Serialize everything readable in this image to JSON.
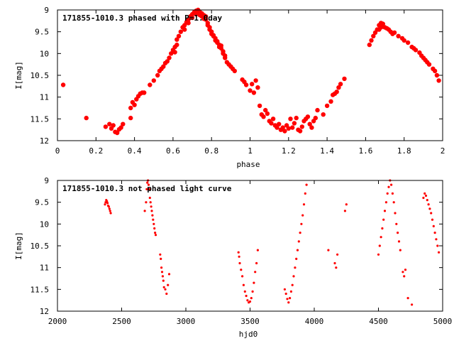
{
  "chart_data": [
    {
      "type": "scatter",
      "title": "171855-1010.3 phased with P=1.0day",
      "xlabel": "phase",
      "ylabel": "I[mag]",
      "xlim": [
        0,
        2
      ],
      "ylim": [
        9,
        12
      ],
      "y_inverted": true,
      "xticks": [
        "0",
        "0.2",
        "0.4",
        "0.6",
        "0.8",
        "1",
        "1.2",
        "1.4",
        "1.6",
        "1.8",
        "2"
      ],
      "yticks": [
        "9",
        "9.5",
        "10",
        "10.5",
        "11",
        "11.5",
        "12"
      ],
      "color": "#ff0000",
      "marker_size": "large",
      "x": [
        0.03,
        0.15,
        0.25,
        0.27,
        0.28,
        0.29,
        0.3,
        0.31,
        0.32,
        0.33,
        0.34,
        0.38,
        0.38,
        0.39,
        0.4,
        0.41,
        0.42,
        0.43,
        0.44,
        0.45,
        0.48,
        0.5,
        0.52,
        0.53,
        0.54,
        0.55,
        0.56,
        0.57,
        0.58,
        0.59,
        0.6,
        0.61,
        0.61,
        0.62,
        0.62,
        0.63,
        0.64,
        0.65,
        0.66,
        0.66,
        0.67,
        0.68,
        0.68,
        0.69,
        0.7,
        0.7,
        0.71,
        0.72,
        0.72,
        0.73,
        0.73,
        0.74,
        0.74,
        0.75,
        0.75,
        0.76,
        0.76,
        0.77,
        0.77,
        0.78,
        0.78,
        0.79,
        0.79,
        0.8,
        0.8,
        0.81,
        0.81,
        0.82,
        0.82,
        0.83,
        0.83,
        0.84,
        0.84,
        0.85,
        0.85,
        0.86,
        0.86,
        0.87,
        0.87,
        0.88,
        0.89,
        0.9,
        0.91,
        0.92,
        0.96,
        0.97,
        0.98,
        1.0,
        1.01,
        1.02,
        1.03,
        1.04,
        1.05,
        1.06,
        1.07,
        1.08,
        1.09,
        1.1,
        1.11,
        1.12,
        1.13,
        1.14,
        1.15,
        1.16,
        1.17,
        1.18,
        1.19,
        1.2,
        1.21,
        1.22,
        1.23,
        1.24,
        1.25,
        1.26,
        1.27,
        1.28,
        1.29,
        1.3,
        1.31,
        1.32,
        1.33,
        1.34,
        1.35,
        1.38,
        1.4,
        1.42,
        1.43,
        1.44,
        1.45,
        1.46,
        1.47,
        1.49,
        1.62,
        1.63,
        1.64,
        1.65,
        1.66,
        1.67,
        1.67,
        1.68,
        1.68,
        1.69,
        1.69,
        1.7,
        1.71,
        1.72,
        1.73,
        1.74,
        1.75,
        1.77,
        1.79,
        1.8,
        1.82,
        1.84,
        1.85,
        1.86,
        1.88,
        1.89,
        1.9,
        1.91,
        1.92,
        1.93,
        1.95,
        1.96,
        1.97,
        1.98
      ],
      "y": [
        10.72,
        11.48,
        11.68,
        11.62,
        11.72,
        11.65,
        11.8,
        11.82,
        11.74,
        11.7,
        11.62,
        11.48,
        11.25,
        11.12,
        11.18,
        11.05,
        10.98,
        10.92,
        10.9,
        10.9,
        10.72,
        10.62,
        10.5,
        10.4,
        10.35,
        10.3,
        10.22,
        10.18,
        10.1,
        10.0,
        9.92,
        9.85,
        9.97,
        9.8,
        9.68,
        9.6,
        9.5,
        9.4,
        9.35,
        9.45,
        9.28,
        9.22,
        9.3,
        9.15,
        9.1,
        9.18,
        9.05,
        9.1,
        9.02,
        9.08,
        9.0,
        9.05,
        9.12,
        9.08,
        9.15,
        9.12,
        9.2,
        9.15,
        9.22,
        9.3,
        9.35,
        9.4,
        9.45,
        9.5,
        9.55,
        9.6,
        9.58,
        9.65,
        9.7,
        9.75,
        9.72,
        9.8,
        9.85,
        9.88,
        9.82,
        9.95,
        10.0,
        10.1,
        10.05,
        10.2,
        10.25,
        10.3,
        10.35,
        10.4,
        10.6,
        10.65,
        10.72,
        10.85,
        10.7,
        10.9,
        10.62,
        10.78,
        11.2,
        11.4,
        11.45,
        11.3,
        11.38,
        11.55,
        11.6,
        11.5,
        11.65,
        11.7,
        11.62,
        11.75,
        11.7,
        11.78,
        11.65,
        11.72,
        11.5,
        11.7,
        11.6,
        11.48,
        11.75,
        11.78,
        11.68,
        11.55,
        11.5,
        11.45,
        11.62,
        11.7,
        11.55,
        11.48,
        11.3,
        11.4,
        11.2,
        11.1,
        10.95,
        10.92,
        10.88,
        10.78,
        10.7,
        10.58,
        9.8,
        9.7,
        9.6,
        9.52,
        9.45,
        9.35,
        9.45,
        9.3,
        9.4,
        9.32,
        9.38,
        9.4,
        9.42,
        9.45,
        9.5,
        9.55,
        9.52,
        9.6,
        9.65,
        9.7,
        9.75,
        9.85,
        9.88,
        9.92,
        9.98,
        10.05,
        10.1,
        10.15,
        10.2,
        10.25,
        10.35,
        10.4,
        10.5,
        10.62
      ]
    },
    {
      "type": "scatter",
      "title": "171855-1010.3 not phased light curve",
      "xlabel": "hjd0",
      "ylabel": "I[mag]",
      "xlim": [
        2000,
        5000
      ],
      "ylim": [
        9,
        12
      ],
      "y_inverted": true,
      "xticks": [
        "2000",
        "2500",
        "3000",
        "3500",
        "4000",
        "4500",
        "5000"
      ],
      "yticks": [
        "9",
        "9.5",
        "10",
        "10.5",
        "11",
        "11.5",
        "12"
      ],
      "color": "#ff0000",
      "marker_size": "small",
      "x": [
        2370,
        2375,
        2380,
        2385,
        2390,
        2395,
        2400,
        2405,
        2410,
        2415,
        2680,
        2690,
        2695,
        2700,
        2705,
        2710,
        2715,
        2720,
        2725,
        2730,
        2735,
        2740,
        2745,
        2750,
        2755,
        2760,
        2765,
        2800,
        2805,
        2810,
        2815,
        2820,
        2825,
        2830,
        2840,
        2850,
        2860,
        2870,
        3410,
        3415,
        3420,
        3430,
        3440,
        3450,
        3460,
        3470,
        3480,
        3490,
        3500,
        3510,
        3520,
        3530,
        3540,
        3550,
        3560,
        3770,
        3780,
        3790,
        3800,
        3810,
        3820,
        3830,
        3840,
        3850,
        3860,
        3870,
        3880,
        3890,
        3900,
        3910,
        3920,
        3930,
        3940,
        4110,
        4160,
        4170,
        4180,
        4240,
        4250,
        4500,
        4510,
        4520,
        4530,
        4540,
        4550,
        4560,
        4570,
        4580,
        4590,
        4600,
        4610,
        4620,
        4630,
        4640,
        4650,
        4660,
        4670,
        4690,
        4700,
        4710,
        4730,
        4760,
        4850,
        4860,
        4870,
        4880,
        4890,
        4900,
        4910,
        4920,
        4930,
        4940,
        4950,
        4960,
        4970
      ],
      "y": [
        9.55,
        9.5,
        9.45,
        9.48,
        9.52,
        9.58,
        9.6,
        9.65,
        9.7,
        9.75,
        9.7,
        9.5,
        9.2,
        9.05,
        9.0,
        9.1,
        9.2,
        9.4,
        9.5,
        9.6,
        9.7,
        9.8,
        9.9,
        10.0,
        10.1,
        10.2,
        10.25,
        10.7,
        10.8,
        11.0,
        11.1,
        11.2,
        11.3,
        11.45,
        11.5,
        11.6,
        11.4,
        11.15,
        10.65,
        10.75,
        10.9,
        11.05,
        11.2,
        11.4,
        11.55,
        11.65,
        11.75,
        11.8,
        11.78,
        11.7,
        11.55,
        11.35,
        11.1,
        10.9,
        10.6,
        11.5,
        11.6,
        11.72,
        11.8,
        11.7,
        11.55,
        11.4,
        11.2,
        11.0,
        10.8,
        10.6,
        10.4,
        10.2,
        10.0,
        9.8,
        9.55,
        9.3,
        9.1,
        10.6,
        10.9,
        11.0,
        10.7,
        9.7,
        9.55,
        10.7,
        10.5,
        10.3,
        10.1,
        9.9,
        9.7,
        9.5,
        9.3,
        9.15,
        9.0,
        9.1,
        9.3,
        9.5,
        9.75,
        10.0,
        10.2,
        10.4,
        10.6,
        11.1,
        11.2,
        11.05,
        11.7,
        11.85,
        9.4,
        9.3,
        9.35,
        9.45,
        9.55,
        9.65,
        9.75,
        9.9,
        10.05,
        10.2,
        10.35,
        10.5,
        10.65
      ]
    }
  ]
}
